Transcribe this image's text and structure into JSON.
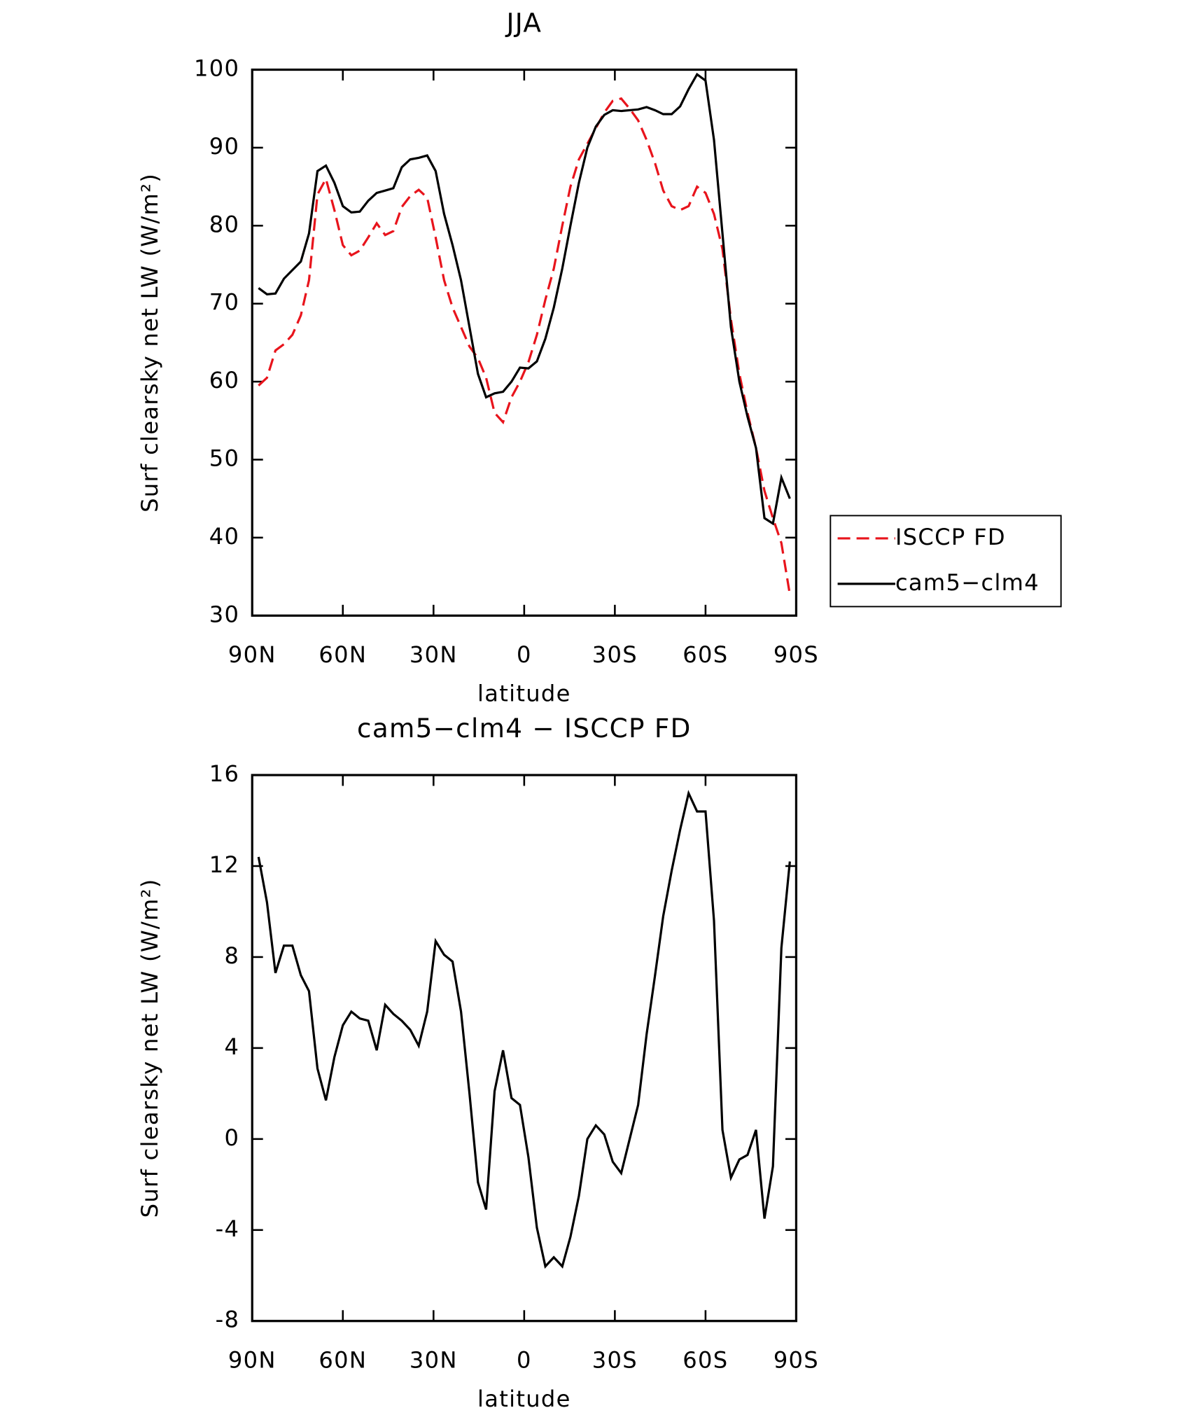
{
  "chart_data": [
    {
      "type": "line",
      "title": "JJA",
      "x_label": "latitude",
      "y_label": "Surf clearsky net LW (W/m²)",
      "x": [
        87.9,
        85.1,
        82.3,
        79.5,
        76.7,
        73.9,
        71.2,
        68.4,
        65.6,
        62.8,
        60.0,
        57.2,
        54.4,
        51.6,
        48.8,
        46.0,
        43.3,
        40.5,
        37.7,
        34.9,
        32.1,
        29.3,
        26.5,
        23.7,
        20.9,
        18.1,
        15.3,
        12.6,
        9.8,
        7.0,
        4.2,
        1.4,
        -1.4,
        -4.2,
        -7.0,
        -9.8,
        -12.6,
        -15.3,
        -18.1,
        -20.9,
        -23.7,
        -26.5,
        -29.3,
        -32.1,
        -34.9,
        -37.7,
        -40.5,
        -43.3,
        -46.0,
        -48.8,
        -51.6,
        -54.4,
        -57.2,
        -60.0,
        -62.8,
        -65.6,
        -68.4,
        -71.2,
        -73.9,
        -76.7,
        -79.5,
        -82.3,
        -85.1,
        -87.9
      ],
      "series": [
        {
          "name": "ISCCP FD",
          "color": "#e8141c",
          "dash": true,
          "values": [
            59.5,
            60.5,
            64,
            64.8,
            66,
            68.5,
            73,
            84,
            86,
            82,
            77.5,
            76.2,
            76.8,
            78.5,
            80.3,
            78.8,
            79.3,
            82.4,
            83.8,
            84.6,
            83.6,
            78.5,
            73,
            69.5,
            67,
            64.5,
            63,
            60.5,
            56,
            54.8,
            58,
            60,
            62.5,
            66,
            70.5,
            74.5,
            80,
            85,
            88.5,
            90.5,
            92.5,
            94.5,
            96,
            96.3,
            95,
            93.5,
            91,
            88,
            84.5,
            82.5,
            82,
            82.5,
            85,
            84.2,
            81.5,
            77,
            68,
            61,
            56,
            51.5,
            46,
            42.5,
            39.3,
            32.7
          ]
        },
        {
          "name": "cam5−clm4",
          "color": "#000000",
          "dash": false,
          "values": [
            72,
            71.2,
            71.3,
            73.2,
            74.3,
            75.4,
            79,
            87,
            87.7,
            85.5,
            82.5,
            81.7,
            81.8,
            83.2,
            84.2,
            84.5,
            84.8,
            87.5,
            88.5,
            88.7,
            89,
            87,
            81.5,
            77.5,
            73,
            67,
            61,
            58,
            58.5,
            58.7,
            60,
            61.8,
            61.7,
            62.6,
            65.5,
            69.5,
            74.5,
            80,
            85.5,
            90,
            92.7,
            94.2,
            94.8,
            94.7,
            94.8,
            94.9,
            95.2,
            94.8,
            94.3,
            94.3,
            95.3,
            97.5,
            99.4,
            98.6,
            91,
            79,
            67,
            60,
            55.5,
            51.5,
            42.5,
            41.8,
            47.7,
            45
          ]
        }
      ],
      "xlim": [
        90,
        -90
      ],
      "xticks": [
        {
          "value": 90,
          "label": "90N"
        },
        {
          "value": 60,
          "label": "60N"
        },
        {
          "value": 30,
          "label": "30N"
        },
        0,
        {
          "value": -30,
          "label": "30S"
        },
        {
          "value": -60,
          "label": "60S"
        },
        {
          "value": -90,
          "label": "90S"
        }
      ],
      "ylim": [
        30,
        100
      ],
      "yticks": [
        30,
        40,
        50,
        60,
        70,
        80,
        90,
        100
      ],
      "legend": "right"
    },
    {
      "type": "line",
      "title": "cam5−clm4 − ISCCP FD",
      "x_label": "latitude",
      "y_label": "Surf clearsky net LW (W/m²)",
      "x": [
        87.9,
        85.1,
        82.3,
        79.5,
        76.7,
        73.9,
        71.2,
        68.4,
        65.6,
        62.8,
        60.0,
        57.2,
        54.4,
        51.6,
        48.8,
        46.0,
        43.3,
        40.5,
        37.7,
        34.9,
        32.1,
        29.3,
        26.5,
        23.7,
        20.9,
        18.1,
        15.3,
        12.6,
        9.8,
        7.0,
        4.2,
        1.4,
        -1.4,
        -4.2,
        -7.0,
        -9.8,
        -12.6,
        -15.3,
        -18.1,
        -20.9,
        -23.7,
        -26.5,
        -29.3,
        -32.1,
        -34.9,
        -37.7,
        -40.5,
        -43.3,
        -46.0,
        -48.8,
        -51.6,
        -54.4,
        -57.2,
        -60.0,
        -62.8,
        -65.6,
        -68.4,
        -71.2,
        -73.9,
        -76.7,
        -79.5,
        -82.3,
        -85.1,
        -87.9
      ],
      "color": "#000000",
      "values": [
        12.4,
        10.4,
        7.3,
        8.5,
        8.5,
        7.2,
        6.5,
        3.1,
        1.7,
        3.6,
        5,
        5.6,
        5.3,
        5.2,
        3.9,
        5.9,
        5.5,
        5.2,
        4.8,
        4.1,
        5.6,
        8.7,
        8.1,
        7.8,
        5.6,
        2,
        -1.9,
        -3.1,
        2.1,
        3.9,
        1.8,
        1.5,
        -0.8,
        -3.9,
        -5.6,
        -5.2,
        -5.6,
        -4.3,
        -2.5,
        0,
        0.6,
        0.2,
        -1,
        -1.5,
        0,
        1.5,
        4.6,
        7.2,
        9.8,
        11.8,
        13.6,
        15.2,
        14.4,
        14.4,
        9.6,
        0.4,
        -1.7,
        -0.9,
        -0.7,
        0.4,
        -3.5,
        -1.2,
        8.4,
        12.2
      ],
      "xlim": [
        90,
        -90
      ],
      "xticks": [
        {
          "value": 90,
          "label": "90N"
        },
        {
          "value": 60,
          "label": "60N"
        },
        {
          "value": 30,
          "label": "30N"
        },
        0,
        {
          "value": -30,
          "label": "30S"
        },
        {
          "value": -60,
          "label": "60S"
        },
        {
          "value": -90,
          "label": "90S"
        }
      ],
      "ylim": [
        -8,
        16
      ],
      "yticks": [
        -8,
        -4,
        0,
        4,
        8,
        12,
        16
      ]
    }
  ]
}
